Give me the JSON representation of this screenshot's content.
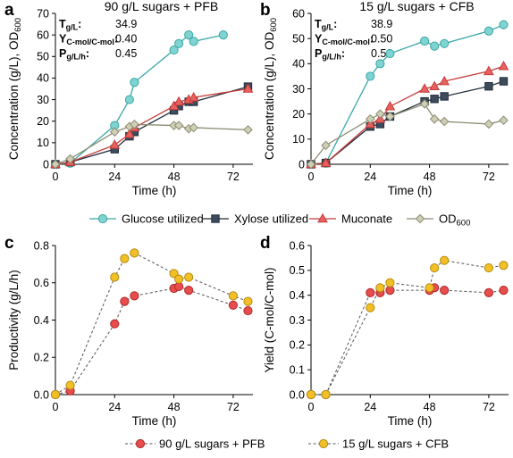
{
  "colors": {
    "glucose": "#7fd3d0",
    "glucose_stroke": "#3aa8a6",
    "xylose": "#3d4b5c",
    "xylose_stroke": "#222c38",
    "muconate": "#e8615f",
    "muconate_stroke": "#c43c3a",
    "od": "#cfcfb6",
    "od_stroke": "#8c8c74",
    "pfb": "#e84d4d",
    "pfb_stroke": "#b02828",
    "cfb": "#f2c026",
    "cfb_stroke": "#b58a10"
  },
  "legend_top": {
    "items": [
      {
        "key": "glucose",
        "label": "Glucose utilized",
        "marker": "circle"
      },
      {
        "key": "xylose",
        "label": "Xylose utilized",
        "marker": "square"
      },
      {
        "key": "muconate",
        "label": "Muconate",
        "marker": "triangle"
      },
      {
        "key": "od",
        "label": "OD",
        "sub": "600",
        "marker": "diamond"
      }
    ]
  },
  "legend_bottom": {
    "items": [
      {
        "key": "pfb",
        "label": "90 g/L sugars + PFB"
      },
      {
        "key": "cfb",
        "label": "15 g/L sugars + CFB"
      }
    ]
  },
  "chart_data": [
    {
      "id": "a",
      "panel_letter": "a",
      "type": "line",
      "title": "90 g/L sugars + PFB",
      "xlabel": "Time (h)",
      "ylabel": "Concentration (g/L), OD",
      "ylabel_sub": "600",
      "xlim": [
        0,
        80
      ],
      "ylim": [
        0,
        70
      ],
      "xticks": [
        0,
        24,
        48,
        72
      ],
      "yticks": [
        0,
        10,
        20,
        30,
        40,
        50,
        60,
        70
      ],
      "stats": [
        {
          "label": "T",
          "sub": "g/L",
          "colon": ":",
          "value": "34.9"
        },
        {
          "label": "Y",
          "sub": "C-mol/C-mol",
          "colon": ":",
          "value": "0.40"
        },
        {
          "label": "P",
          "sub": "g/L/h",
          "colon": ":",
          "value": "0.45"
        }
      ],
      "series": [
        {
          "key": "glucose",
          "x": [
            0,
            6,
            24,
            30,
            32,
            48,
            50,
            54,
            56,
            68
          ],
          "y": [
            0,
            0.5,
            18,
            30,
            38,
            53,
            56,
            60,
            57,
            60
          ]
        },
        {
          "key": "xylose",
          "x": [
            0,
            6,
            24,
            30,
            32,
            48,
            50,
            54,
            56,
            78
          ],
          "y": [
            0,
            1,
            7,
            13,
            15,
            25,
            27,
            29,
            29,
            36
          ]
        },
        {
          "key": "muconate",
          "x": [
            0,
            6,
            24,
            30,
            32,
            48,
            50,
            54,
            56,
            78
          ],
          "y": [
            0,
            1,
            9,
            14,
            17,
            27,
            29,
            30,
            31,
            35
          ]
        },
        {
          "key": "od",
          "x": [
            0,
            6,
            24,
            30,
            32,
            48,
            50,
            54,
            56,
            78
          ],
          "y": [
            0,
            2.5,
            15,
            17.5,
            18.5,
            18,
            18,
            16.5,
            17,
            16
          ]
        }
      ]
    },
    {
      "id": "b",
      "panel_letter": "b",
      "type": "line",
      "title": "15 g/L sugars + CFB",
      "xlabel": "Time (h)",
      "ylabel": "Concentration (g/L), OD",
      "ylabel_sub": "600",
      "xlim": [
        0,
        80
      ],
      "ylim": [
        0,
        60
      ],
      "xticks": [
        0,
        24,
        48,
        72
      ],
      "yticks": [
        0,
        10,
        20,
        30,
        40,
        50,
        60
      ],
      "stats": [
        {
          "label": "T",
          "sub": "g/L",
          "colon": ":",
          "value": "38.9"
        },
        {
          "label": "Y",
          "sub": "C-mol/C-mol",
          "colon": ":",
          "value": "0.50"
        },
        {
          "label": "P",
          "sub": "g/L/h",
          "colon": ":",
          "value": "0.50"
        }
      ],
      "series": [
        {
          "key": "glucose",
          "x": [
            0,
            6,
            24,
            28,
            32,
            46,
            50,
            54,
            72,
            78
          ],
          "y": [
            0,
            0.5,
            35,
            40,
            44,
            49,
            47,
            48,
            53,
            55.5
          ]
        },
        {
          "key": "xylose",
          "x": [
            0,
            6,
            24,
            28,
            32,
            46,
            50,
            54,
            72,
            78
          ],
          "y": [
            0,
            0.5,
            15,
            16,
            19,
            25,
            26,
            27,
            31,
            33
          ]
        },
        {
          "key": "muconate",
          "x": [
            0,
            6,
            24,
            28,
            32,
            46,
            50,
            54,
            72,
            78
          ],
          "y": [
            0,
            0.5,
            16,
            18,
            23,
            30,
            31,
            33,
            37,
            39
          ]
        },
        {
          "key": "od",
          "x": [
            0,
            6,
            24,
            28,
            32,
            46,
            50,
            54,
            72,
            78
          ],
          "y": [
            0,
            7.5,
            18,
            20,
            19,
            24,
            18,
            17,
            16,
            17.5
          ]
        }
      ]
    },
    {
      "id": "c",
      "panel_letter": "c",
      "type": "line",
      "title": "",
      "xlabel": "Time (h)",
      "ylabel": "Productivity (g/L/h)",
      "xlim": [
        0,
        80
      ],
      "ylim": [
        0,
        0.8
      ],
      "xticks": [
        0,
        24,
        48,
        72
      ],
      "yticks": [
        0.0,
        0.2,
        0.4,
        0.6,
        0.8
      ],
      "ytick_labels": [
        "0.0",
        "0.2",
        "0.4",
        "0.6",
        "0.8"
      ],
      "series": [
        {
          "key": "pfb",
          "x": [
            0,
            6,
            24,
            28,
            32,
            48,
            50,
            54,
            72,
            78
          ],
          "y": [
            0,
            0.02,
            0.38,
            0.5,
            0.53,
            0.57,
            0.58,
            0.56,
            0.48,
            0.45
          ]
        },
        {
          "key": "cfb",
          "x": [
            0,
            6,
            24,
            28,
            32,
            48,
            50,
            54,
            72,
            78
          ],
          "y": [
            0,
            0.05,
            0.63,
            0.73,
            0.76,
            0.65,
            0.62,
            0.63,
            0.53,
            0.5
          ]
        }
      ]
    },
    {
      "id": "d",
      "panel_letter": "d",
      "type": "line",
      "title": "",
      "xlabel": "Time (h)",
      "ylabel": "Yield (C-mol/C-mol)",
      "xlim": [
        0,
        80
      ],
      "ylim": [
        0,
        0.6
      ],
      "xticks": [
        0,
        24,
        48,
        72
      ],
      "yticks": [
        0.0,
        0.1,
        0.2,
        0.3,
        0.4,
        0.5,
        0.6
      ],
      "ytick_labels": [
        "0.0",
        "0.1",
        "0.2",
        "0.3",
        "0.4",
        "0.5",
        "0.6"
      ],
      "series": [
        {
          "key": "pfb",
          "x": [
            0,
            6,
            24,
            28,
            32,
            48,
            50,
            54,
            72,
            78
          ],
          "y": [
            0,
            0,
            0.41,
            0.41,
            0.42,
            0.42,
            0.43,
            0.42,
            0.41,
            0.42
          ]
        },
        {
          "key": "cfb",
          "x": [
            0,
            6,
            24,
            28,
            32,
            48,
            50,
            54,
            72,
            78
          ],
          "y": [
            0,
            0,
            0.35,
            0.43,
            0.45,
            0.43,
            0.51,
            0.54,
            0.51,
            0.52
          ]
        }
      ]
    }
  ]
}
